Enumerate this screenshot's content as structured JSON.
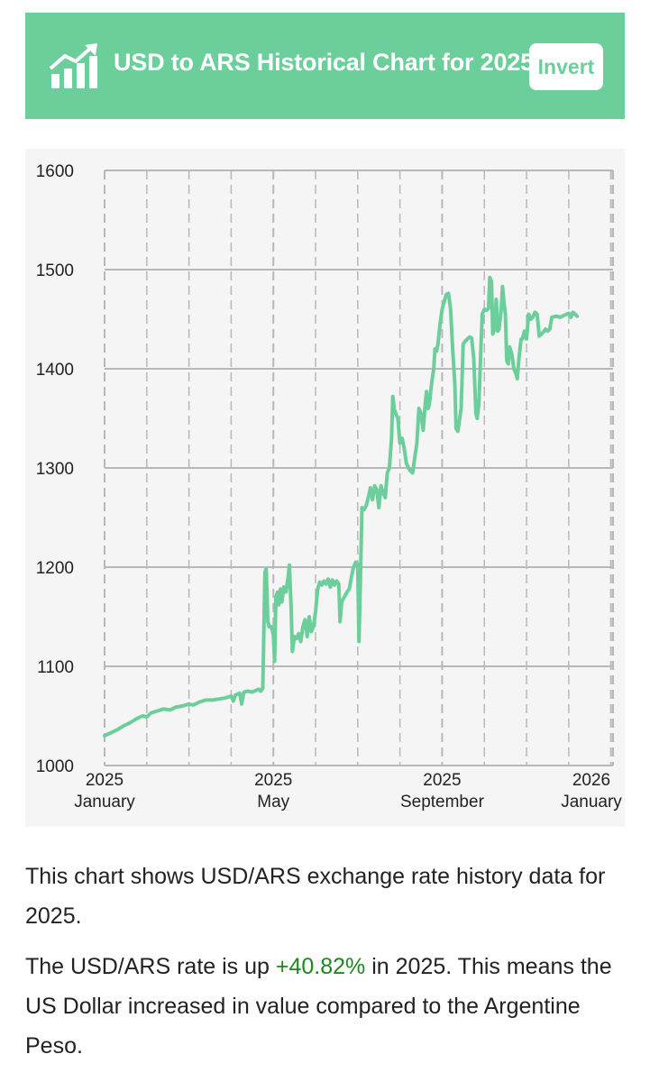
{
  "header": {
    "title": "USD to ARS Historical Chart for 2025",
    "invert_label": "Invert",
    "icon": "trending-up-chart-icon"
  },
  "colors": {
    "accent": "#6ccf9b",
    "line": "#6ccf9b",
    "positive": "#1a8a1a",
    "grid": "#b8b8b8",
    "chart_bg": "#f5f5f5"
  },
  "chart_data": {
    "type": "line",
    "title": "USD to ARS Historical Chart for 2025",
    "series_name": "USD/ARS",
    "ylim": [
      1000,
      1600
    ],
    "yticks": [
      1000,
      1100,
      1200,
      1300,
      1400,
      1500,
      1600
    ],
    "xlim": [
      0,
      12.05
    ],
    "xticks": [
      {
        "x": 0,
        "year": "2025",
        "month": "January"
      },
      {
        "x": 4,
        "year": "2025",
        "month": "May"
      },
      {
        "x": 8,
        "year": "2025",
        "month": "September"
      },
      {
        "x": 12,
        "year": "2026",
        "month": "January"
      }
    ],
    "xlabel": "",
    "ylabel": "",
    "grid": true,
    "points": [
      [
        0.0,
        1030
      ],
      [
        0.15,
        1033
      ],
      [
        0.3,
        1036
      ],
      [
        0.45,
        1040
      ],
      [
        0.6,
        1043
      ],
      [
        0.75,
        1047
      ],
      [
        0.9,
        1050
      ],
      [
        1.0,
        1049
      ],
      [
        1.1,
        1053
      ],
      [
        1.25,
        1055
      ],
      [
        1.4,
        1057
      ],
      [
        1.55,
        1056
      ],
      [
        1.7,
        1059
      ],
      [
        1.85,
        1060
      ],
      [
        2.0,
        1062
      ],
      [
        2.1,
        1061
      ],
      [
        2.25,
        1064
      ],
      [
        2.4,
        1066
      ],
      [
        2.55,
        1066
      ],
      [
        2.7,
        1067
      ],
      [
        2.85,
        1068
      ],
      [
        3.0,
        1070
      ],
      [
        3.05,
        1065
      ],
      [
        3.1,
        1071
      ],
      [
        3.2,
        1073
      ],
      [
        3.25,
        1062
      ],
      [
        3.3,
        1074
      ],
      [
        3.4,
        1075
      ],
      [
        3.5,
        1074
      ],
      [
        3.6,
        1076
      ],
      [
        3.65,
        1077
      ],
      [
        3.7,
        1075
      ],
      [
        3.75,
        1078
      ],
      [
        3.8,
        1195
      ],
      [
        3.83,
        1198
      ],
      [
        3.87,
        1145
      ],
      [
        3.9,
        1140
      ],
      [
        3.95,
        1140
      ],
      [
        4.0,
        1132
      ],
      [
        4.03,
        1105
      ],
      [
        4.06,
        1170
      ],
      [
        4.1,
        1175
      ],
      [
        4.13,
        1162
      ],
      [
        4.17,
        1178
      ],
      [
        4.2,
        1165
      ],
      [
        4.25,
        1180
      ],
      [
        4.3,
        1175
      ],
      [
        4.35,
        1190
      ],
      [
        4.38,
        1202
      ],
      [
        4.42,
        1160
      ],
      [
        4.45,
        1115
      ],
      [
        4.5,
        1130
      ],
      [
        4.55,
        1128
      ],
      [
        4.6,
        1133
      ],
      [
        4.65,
        1125
      ],
      [
        4.7,
        1140
      ],
      [
        4.75,
        1147
      ],
      [
        4.8,
        1130
      ],
      [
        4.85,
        1150
      ],
      [
        4.9,
        1135
      ],
      [
        4.95,
        1140
      ],
      [
        5.0,
        1155
      ],
      [
        5.05,
        1178
      ],
      [
        5.1,
        1185
      ],
      [
        5.15,
        1182
      ],
      [
        5.2,
        1186
      ],
      [
        5.25,
        1183
      ],
      [
        5.3,
        1188
      ],
      [
        5.35,
        1180
      ],
      [
        5.4,
        1187
      ],
      [
        5.45,
        1182
      ],
      [
        5.5,
        1186
      ],
      [
        5.55,
        1183
      ],
      [
        5.58,
        1145
      ],
      [
        5.62,
        1165
      ],
      [
        5.68,
        1170
      ],
      [
        5.75,
        1175
      ],
      [
        5.8,
        1178
      ],
      [
        5.85,
        1190
      ],
      [
        5.9,
        1200
      ],
      [
        5.95,
        1205
      ],
      [
        6.0,
        1203
      ],
      [
        6.03,
        1125
      ],
      [
        6.07,
        1200
      ],
      [
        6.1,
        1260
      ],
      [
        6.15,
        1258
      ],
      [
        6.2,
        1262
      ],
      [
        6.25,
        1270
      ],
      [
        6.3,
        1280
      ],
      [
        6.35,
        1268
      ],
      [
        6.4,
        1282
      ],
      [
        6.45,
        1278
      ],
      [
        6.5,
        1260
      ],
      [
        6.55,
        1282
      ],
      [
        6.6,
        1275
      ],
      [
        6.65,
        1270
      ],
      [
        6.7,
        1295
      ],
      [
        6.75,
        1300
      ],
      [
        6.8,
        1330
      ],
      [
        6.83,
        1372
      ],
      [
        6.87,
        1358
      ],
      [
        6.9,
        1355
      ],
      [
        6.95,
        1350
      ],
      [
        7.0,
        1325
      ],
      [
        7.05,
        1330
      ],
      [
        7.1,
        1320
      ],
      [
        7.15,
        1305
      ],
      [
        7.2,
        1300
      ],
      [
        7.25,
        1297
      ],
      [
        7.3,
        1295
      ],
      [
        7.35,
        1310
      ],
      [
        7.4,
        1325
      ],
      [
        7.45,
        1360
      ],
      [
        7.5,
        1355
      ],
      [
        7.55,
        1338
      ],
      [
        7.6,
        1365
      ],
      [
        7.63,
        1377
      ],
      [
        7.67,
        1360
      ],
      [
        7.7,
        1365
      ],
      [
        7.75,
        1385
      ],
      [
        7.8,
        1400
      ],
      [
        7.83,
        1420
      ],
      [
        7.87,
        1418
      ],
      [
        7.9,
        1425
      ],
      [
        7.95,
        1445
      ],
      [
        8.0,
        1460
      ],
      [
        8.05,
        1468
      ],
      [
        8.1,
        1475
      ],
      [
        8.15,
        1476
      ],
      [
        8.2,
        1460
      ],
      [
        8.25,
        1420
      ],
      [
        8.3,
        1385
      ],
      [
        8.33,
        1340
      ],
      [
        8.37,
        1337
      ],
      [
        8.4,
        1345
      ],
      [
        8.45,
        1360
      ],
      [
        8.5,
        1425
      ],
      [
        8.55,
        1428
      ],
      [
        8.6,
        1430
      ],
      [
        8.65,
        1432
      ],
      [
        8.7,
        1431
      ],
      [
        8.75,
        1410
      ],
      [
        8.8,
        1355
      ],
      [
        8.83,
        1350
      ],
      [
        8.87,
        1365
      ],
      [
        8.9,
        1400
      ],
      [
        8.95,
        1455
      ],
      [
        9.0,
        1460
      ],
      [
        9.05,
        1459
      ],
      [
        9.1,
        1461
      ],
      [
        9.13,
        1492
      ],
      [
        9.17,
        1488
      ],
      [
        9.2,
        1435
      ],
      [
        9.25,
        1440
      ],
      [
        9.28,
        1470
      ],
      [
        9.32,
        1438
      ],
      [
        9.35,
        1440
      ],
      [
        9.4,
        1460
      ],
      [
        9.43,
        1483
      ],
      [
        9.47,
        1465
      ],
      [
        9.5,
        1455
      ],
      [
        9.53,
        1408
      ],
      [
        9.57,
        1405
      ],
      [
        9.6,
        1422
      ],
      [
        9.65,
        1415
      ],
      [
        9.7,
        1400
      ],
      [
        9.75,
        1395
      ],
      [
        9.78,
        1390
      ],
      [
        9.82,
        1410
      ],
      [
        9.87,
        1430
      ],
      [
        9.9,
        1430
      ],
      [
        9.95,
        1438
      ],
      [
        10.0,
        1430
      ],
      [
        10.05,
        1455
      ],
      [
        10.1,
        1450
      ],
      [
        10.15,
        1452
      ],
      [
        10.2,
        1457
      ],
      [
        10.25,
        1455
      ],
      [
        10.3,
        1433
      ],
      [
        10.35,
        1435
      ],
      [
        10.4,
        1437
      ],
      [
        10.45,
        1440
      ],
      [
        10.5,
        1438
      ],
      [
        10.55,
        1440
      ],
      [
        10.6,
        1452
      ],
      [
        10.7,
        1453
      ],
      [
        10.8,
        1452
      ],
      [
        10.9,
        1454
      ],
      [
        11.0,
        1456
      ],
      [
        11.05,
        1452
      ],
      [
        11.1,
        1457
      ],
      [
        11.15,
        1455
      ],
      [
        11.2,
        1453
      ]
    ]
  },
  "description": {
    "line1": "This chart shows USD/ARS exchange rate history data for 2025.",
    "line2_before": "The USD/ARS rate is up ",
    "line2_pct": "+40.82%",
    "line2_after": " in 2025. This means the US Dollar increased in value compared to the Argentine Peso."
  }
}
